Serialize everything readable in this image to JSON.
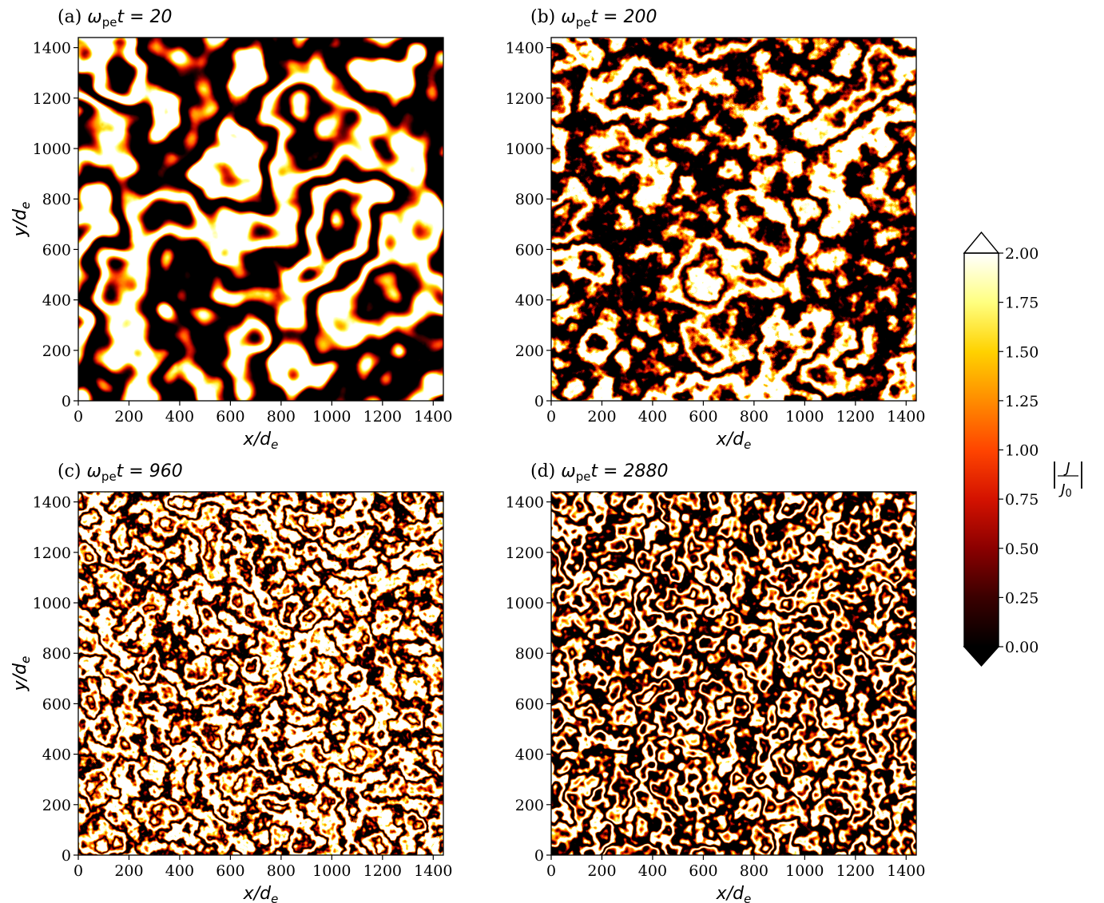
{
  "chart_data": [
    {
      "type": "heatmap",
      "panel": "(a)",
      "title_prefix": "(a)",
      "title_math": "ω",
      "title_sub": "pe",
      "title_rest": "t = 20",
      "xlabel": "x/d",
      "xlabel_sub": "e",
      "ylabel": "y/d",
      "ylabel_sub": "e",
      "xlim": [
        0,
        1440
      ],
      "ylim": [
        0,
        1440
      ],
      "xticks": [
        0,
        200,
        400,
        600,
        800,
        1000,
        1200,
        1400
      ],
      "yticks": [
        0,
        200,
        400,
        600,
        800,
        1000,
        1200,
        1400
      ],
      "texture": "smooth-blobs"
    },
    {
      "type": "heatmap",
      "panel": "(b)",
      "title_prefix": "(b)",
      "title_math": "ω",
      "title_sub": "pe",
      "title_rest": "t = 200",
      "xlabel": "x/d",
      "xlabel_sub": "e",
      "ylabel": "y/d",
      "ylabel_sub": "e",
      "xlim": [
        0,
        1440
      ],
      "ylim": [
        0,
        1440
      ],
      "xticks": [
        0,
        200,
        400,
        600,
        800,
        1000,
        1200,
        1400
      ],
      "yticks": [
        0,
        200,
        400,
        600,
        800,
        1000,
        1200,
        1400
      ],
      "texture": "vortices-sheets"
    },
    {
      "type": "heatmap",
      "panel": "(c)",
      "title_prefix": "(c)",
      "title_math": "ω",
      "title_sub": "pe",
      "title_rest": "t = 960",
      "xlabel": "x/d",
      "xlabel_sub": "e",
      "ylabel": "y/d",
      "ylabel_sub": "e",
      "xlim": [
        0,
        1440
      ],
      "ylim": [
        0,
        1440
      ],
      "xticks": [
        0,
        200,
        400,
        600,
        800,
        1000,
        1200,
        1400
      ],
      "yticks": [
        0,
        200,
        400,
        600,
        800,
        1000,
        1200,
        1400
      ],
      "texture": "fine-filaments"
    },
    {
      "type": "heatmap",
      "panel": "(d)",
      "title_prefix": "(d)",
      "title_math": "ω",
      "title_sub": "pe",
      "title_rest": "t = 2880",
      "xlabel": "x/d",
      "xlabel_sub": "e",
      "ylabel": "y/d",
      "ylabel_sub": "e",
      "xlim": [
        0,
        1440
      ],
      "ylim": [
        0,
        1440
      ],
      "xticks": [
        0,
        200,
        400,
        600,
        800,
        1000,
        1200,
        1400
      ],
      "yticks": [
        0,
        200,
        400,
        600,
        800,
        1000,
        1200,
        1400
      ],
      "texture": "streamline-filaments"
    }
  ],
  "colorbar": {
    "label_num": "J",
    "label_den": "J",
    "label_den_sub": "0",
    "colormap": "hot",
    "colormap_stops": [
      "#000000",
      "#3a0000",
      "#8b0000",
      "#d41200",
      "#ff4500",
      "#ff8c00",
      "#ffd200",
      "#ffff80",
      "#ffffff"
    ],
    "range": [
      0.0,
      2.0
    ],
    "extend": "both",
    "ticks": [
      "0.00",
      "0.25",
      "0.50",
      "0.75",
      "1.00",
      "1.25",
      "1.50",
      "1.75",
      "2.00"
    ]
  }
}
